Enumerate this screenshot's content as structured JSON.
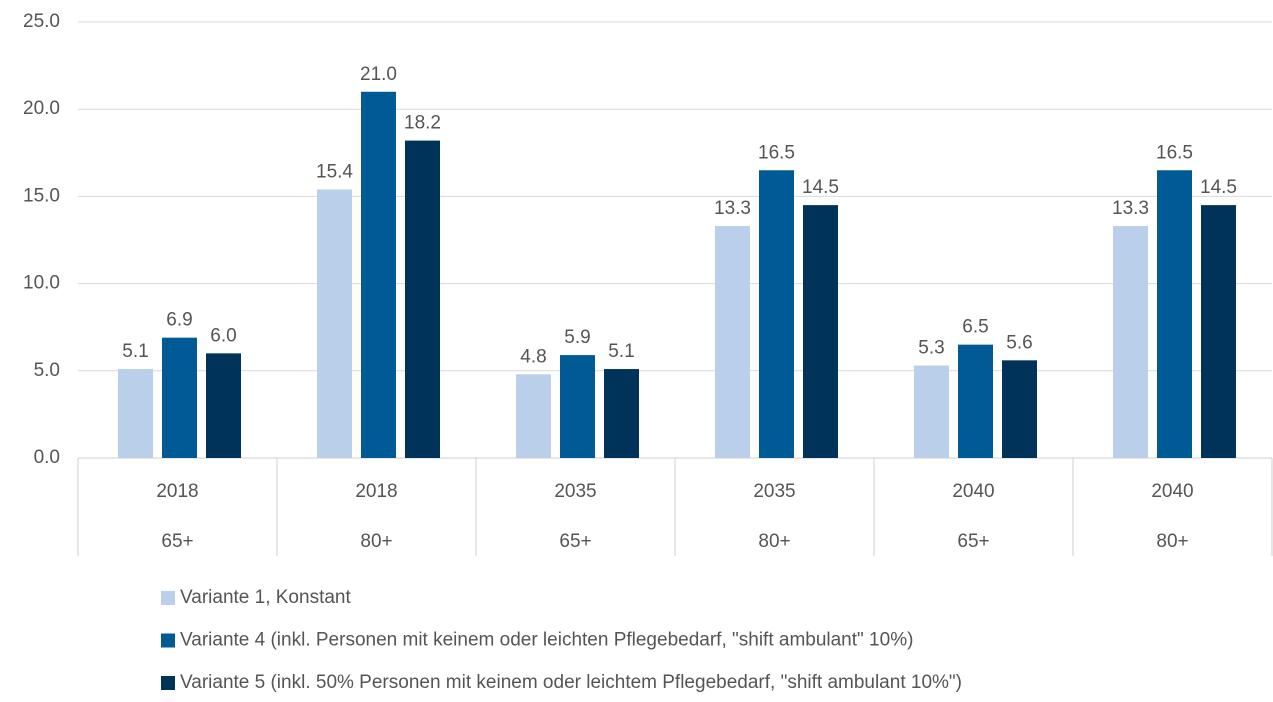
{
  "chart_data": {
    "type": "bar",
    "categories": [
      "2018",
      "2018",
      "2035",
      "2035",
      "2040",
      "2040"
    ],
    "subcategories": [
      "65+",
      "80+",
      "65+",
      "80+",
      "65+",
      "80+"
    ],
    "series": [
      {
        "name": "Variante 1, Konstant",
        "color": "#b9cfea",
        "values": [
          5.1,
          15.4,
          4.8,
          13.3,
          5.3,
          13.3
        ],
        "value_labels": [
          "5.1",
          "15.4",
          "4.8",
          "13.3",
          "5.3",
          "13.3"
        ]
      },
      {
        "name": "Variante 4 (inkl. Personen mit keinem oder leichten Pflegebedarf, \"shift ambulant\" 10%)",
        "color": "#005a96",
        "values": [
          6.9,
          21.0,
          5.9,
          16.5,
          6.5,
          16.5
        ],
        "value_labels": [
          "6.9",
          "21.0",
          "5.9",
          "16.5",
          "6.5",
          "16.5"
        ]
      },
      {
        "name": "Variante 5 (inkl. 50% Personen mit keinem oder leichtem Pflegebedarf, \"shift ambulant 10%\")",
        "color": "#003359",
        "values": [
          6.0,
          18.2,
          5.1,
          14.5,
          5.6,
          14.5
        ],
        "value_labels": [
          "6.0",
          "18.2",
          "5.1",
          "14.5",
          "5.6",
          "14.5"
        ]
      }
    ],
    "ylim": [
      0,
      25
    ],
    "yticks": [
      {
        "value": 0,
        "label": "0.0"
      },
      {
        "value": 5,
        "label": "5.0"
      },
      {
        "value": 10,
        "label": "10.0"
      },
      {
        "value": 15,
        "label": "15.0"
      },
      {
        "value": 20,
        "label": "20.0"
      },
      {
        "value": 25,
        "label": "25.0"
      }
    ],
    "grid": true,
    "legend": "bottom"
  }
}
